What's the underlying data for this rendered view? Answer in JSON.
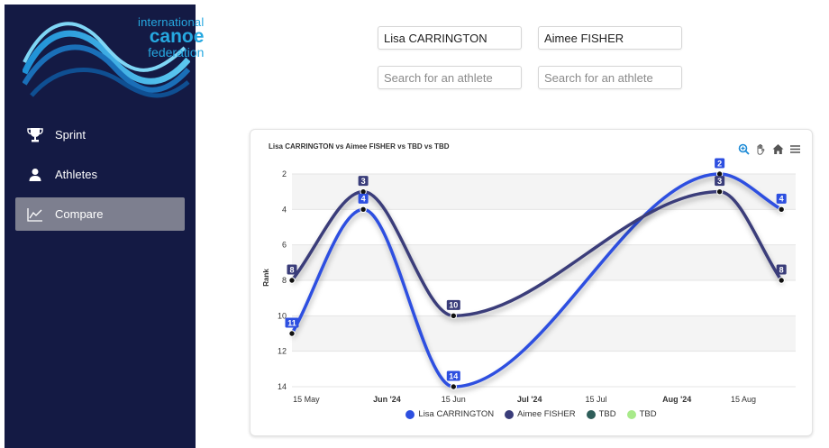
{
  "sidebar": {
    "logo": {
      "line1": "international",
      "line2": "canoe",
      "line3": "federation"
    },
    "items": [
      {
        "label": "Sprint",
        "icon": "trophy-icon"
      },
      {
        "label": "Athletes",
        "icon": "person-icon"
      },
      {
        "label": "Compare",
        "icon": "chart-line-icon",
        "active": true
      }
    ]
  },
  "inputs": {
    "athlete1": "Lisa CARRINGTON",
    "athlete2": "Aimee FISHER",
    "athlete3_placeholder": "Search for an athlete",
    "athlete4_placeholder": "Search for an athlete"
  },
  "colors": {
    "accent_blue": "#2d4fe0",
    "navy": "#3a3d7a",
    "teal": "#2f5e5a",
    "light_green": "#a8ea8a",
    "sidebar_bg": "#141a44"
  },
  "chart_data": {
    "type": "line",
    "title": "Lisa CARRINGTON vs Aimee FISHER vs TBD vs TBD",
    "ylabel": "Rank",
    "xlabel": "",
    "y_reversed": true,
    "ylim": [
      2,
      14
    ],
    "yticks": [
      "2",
      "4",
      "6",
      "8",
      "10",
      "12",
      "14"
    ],
    "xlim": [
      "2024-05-12",
      "2024-08-26"
    ],
    "xticks": [
      {
        "date": "2024-05-15",
        "label": "15 May",
        "bold": false
      },
      {
        "date": "2024-06-01",
        "label": "Jun '24",
        "bold": true
      },
      {
        "date": "2024-06-15",
        "label": "15 Jun",
        "bold": false
      },
      {
        "date": "2024-07-01",
        "label": "Jul '24",
        "bold": true
      },
      {
        "date": "2024-07-15",
        "label": "15 Jul",
        "bold": false
      },
      {
        "date": "2024-08-01",
        "label": "Aug '24",
        "bold": true
      },
      {
        "date": "2024-08-15",
        "label": "15 Aug",
        "bold": false
      }
    ],
    "grid": true,
    "legend_position": "bottom",
    "series": [
      {
        "name": "Lisa CARRINGTON",
        "color": "#2d4fe0",
        "points": [
          {
            "x": "2024-05-12",
            "y": 11
          },
          {
            "x": "2024-05-27",
            "y": 4
          },
          {
            "x": "2024-06-15",
            "y": 14
          },
          {
            "x": "2024-08-10",
            "y": 2
          },
          {
            "x": "2024-08-23",
            "y": 4
          }
        ]
      },
      {
        "name": "Aimee FISHER",
        "color": "#3a3d7a",
        "points": [
          {
            "x": "2024-05-12",
            "y": 8
          },
          {
            "x": "2024-05-27",
            "y": 3
          },
          {
            "x": "2024-06-15",
            "y": 10
          },
          {
            "x": "2024-08-10",
            "y": 3
          },
          {
            "x": "2024-08-23",
            "y": 8
          }
        ]
      },
      {
        "name": "TBD",
        "color": "#2f5e5a",
        "points": []
      },
      {
        "name": "TBD",
        "color": "#a8ea8a",
        "points": []
      }
    ]
  }
}
